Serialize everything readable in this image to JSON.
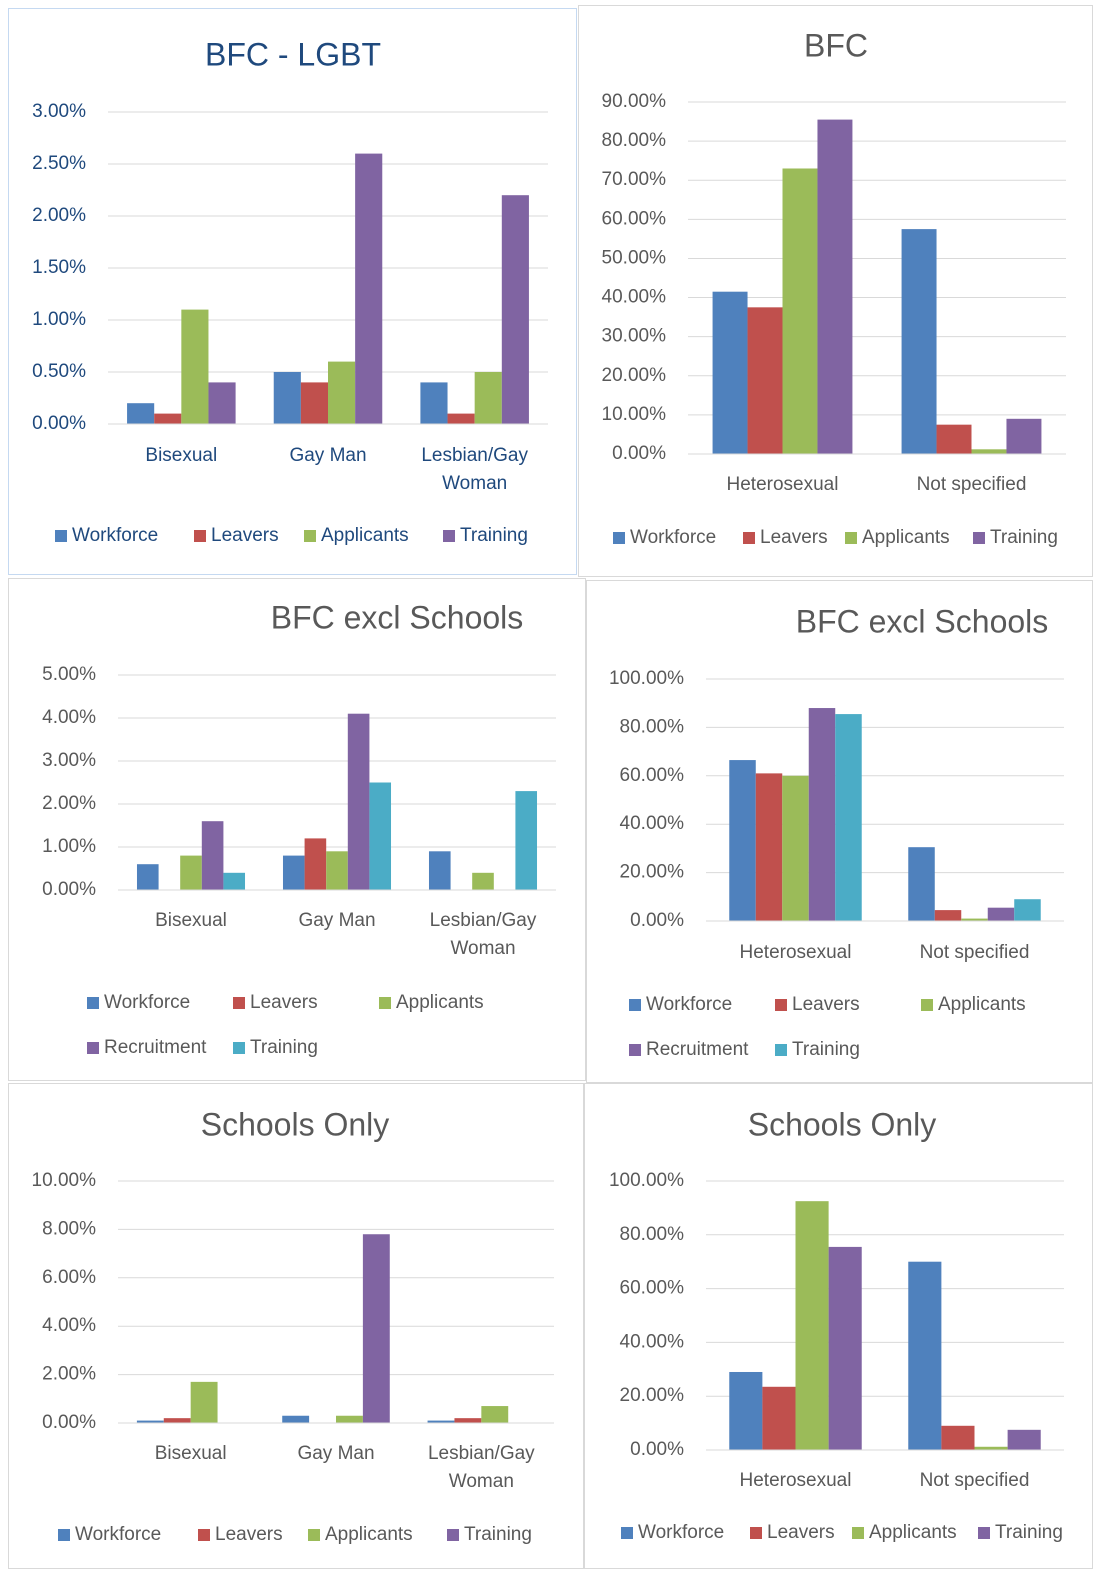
{
  "chart_data": [
    {
      "type": "bar",
      "title": "BFC - LGBT",
      "text_color": "#1f497d",
      "categories": [
        "Bisexual",
        "Gay Man",
        "Lesbian/Gay Woman"
      ],
      "series": [
        {
          "name": "Workforce",
          "color": "#4f81bd",
          "values": [
            0.2,
            0.5,
            0.4
          ]
        },
        {
          "name": "Leavers",
          "color": "#c0504d",
          "values": [
            0.1,
            0.4,
            0.1
          ]
        },
        {
          "name": "Applicants",
          "color": "#9bbb59",
          "values": [
            1.1,
            0.6,
            0.5
          ]
        },
        {
          "name": "Training",
          "color": "#8064a2",
          "values": [
            0.4,
            2.6,
            2.2
          ]
        }
      ],
      "ylim": [
        0,
        3
      ],
      "yticks": [
        {
          "value": 0,
          "label": "0.00%"
        },
        {
          "value": 0.5,
          "label": "0.50%"
        },
        {
          "value": 1,
          "label": "1.00%"
        },
        {
          "value": 1.5,
          "label": "1.50%"
        },
        {
          "value": 2,
          "label": "2.00%"
        },
        {
          "value": 2.5,
          "label": "2.50%"
        },
        {
          "value": 3,
          "label": "3.00%"
        }
      ],
      "grid": true
    },
    {
      "type": "bar",
      "title": "BFC",
      "text_color": "#595959",
      "categories": [
        "Heterosexual",
        "Not specified"
      ],
      "series": [
        {
          "name": "Workforce",
          "color": "#4f81bd",
          "values": [
            41.5,
            57.5
          ]
        },
        {
          "name": "Leavers",
          "color": "#c0504d",
          "values": [
            37.5,
            7.5
          ]
        },
        {
          "name": "Applicants",
          "color": "#9bbb59",
          "values": [
            73,
            1.2
          ]
        },
        {
          "name": "Training",
          "color": "#8064a2",
          "values": [
            85.5,
            9
          ]
        }
      ],
      "ylim": [
        0,
        90
      ],
      "yticks": [
        {
          "value": 0,
          "label": "0.00%"
        },
        {
          "value": 10,
          "label": "10.00%"
        },
        {
          "value": 20,
          "label": "20.00%"
        },
        {
          "value": 30,
          "label": "30.00%"
        },
        {
          "value": 40,
          "label": "40.00%"
        },
        {
          "value": 50,
          "label": "50.00%"
        },
        {
          "value": 60,
          "label": "60.00%"
        },
        {
          "value": 70,
          "label": "70.00%"
        },
        {
          "value": 80,
          "label": "80.00%"
        },
        {
          "value": 90,
          "label": "90.00%"
        }
      ],
      "grid": true
    },
    {
      "type": "bar",
      "title": "BFC excl Schools",
      "text_color": "#595959",
      "categories": [
        "Bisexual",
        "Gay Man",
        "Lesbian/Gay Woman"
      ],
      "series": [
        {
          "name": "Workforce",
          "color": "#4f81bd",
          "values": [
            0.6,
            0.8,
            0.9
          ]
        },
        {
          "name": "Leavers",
          "color": "#c0504d",
          "values": [
            0,
            1.2,
            0
          ]
        },
        {
          "name": "Applicants",
          "color": "#9bbb59",
          "values": [
            0.8,
            0.9,
            0.4
          ]
        },
        {
          "name": "Recruitment",
          "color": "#8064a2",
          "values": [
            1.6,
            4.1,
            0
          ]
        },
        {
          "name": "Training",
          "color": "#4bacc6",
          "values": [
            0.4,
            2.5,
            2.3
          ]
        }
      ],
      "ylim": [
        0,
        5
      ],
      "yticks": [
        {
          "value": 0,
          "label": "0.00%"
        },
        {
          "value": 1,
          "label": "1.00%"
        },
        {
          "value": 2,
          "label": "2.00%"
        },
        {
          "value": 3,
          "label": "3.00%"
        },
        {
          "value": 4,
          "label": "4.00%"
        },
        {
          "value": 5,
          "label": "5.00%"
        }
      ],
      "grid": true
    },
    {
      "type": "bar",
      "title": "BFC excl Schools",
      "text_color": "#595959",
      "categories": [
        "Heterosexual",
        "Not specified"
      ],
      "series": [
        {
          "name": "Workforce",
          "color": "#4f81bd",
          "values": [
            66.5,
            30.5
          ]
        },
        {
          "name": "Leavers",
          "color": "#c0504d",
          "values": [
            61,
            4.5
          ]
        },
        {
          "name": "Applicants",
          "color": "#9bbb59",
          "values": [
            60,
            1
          ]
        },
        {
          "name": "Recruitment",
          "color": "#8064a2",
          "values": [
            88,
            5.5
          ]
        },
        {
          "name": "Training",
          "color": "#4bacc6",
          "values": [
            85.5,
            9
          ]
        }
      ],
      "ylim": [
        0,
        100
      ],
      "yticks": [
        {
          "value": 0,
          "label": "0.00%"
        },
        {
          "value": 20,
          "label": "20.00%"
        },
        {
          "value": 40,
          "label": "40.00%"
        },
        {
          "value": 60,
          "label": "60.00%"
        },
        {
          "value": 80,
          "label": "80.00%"
        },
        {
          "value": 100,
          "label": "100.00%"
        }
      ],
      "grid": true
    },
    {
      "type": "bar",
      "title": "Schools Only",
      "text_color": "#595959",
      "categories": [
        "Bisexual",
        "Gay Man",
        "Lesbian/Gay Woman"
      ],
      "series": [
        {
          "name": "Workforce",
          "color": "#4f81bd",
          "values": [
            0.1,
            0.3,
            0.1
          ]
        },
        {
          "name": "Leavers",
          "color": "#c0504d",
          "values": [
            0.2,
            0,
            0.2
          ]
        },
        {
          "name": "Applicants",
          "color": "#9bbb59",
          "values": [
            1.7,
            0.3,
            0.7
          ]
        },
        {
          "name": "Training",
          "color": "#8064a2",
          "values": [
            0,
            7.8,
            0
          ]
        }
      ],
      "ylim": [
        0,
        10
      ],
      "yticks": [
        {
          "value": 0,
          "label": "0.00%"
        },
        {
          "value": 2,
          "label": "2.00%"
        },
        {
          "value": 4,
          "label": "4.00%"
        },
        {
          "value": 6,
          "label": "6.00%"
        },
        {
          "value": 8,
          "label": "8.00%"
        },
        {
          "value": 10,
          "label": "10.00%"
        }
      ],
      "grid": true
    },
    {
      "type": "bar",
      "title": "Schools Only",
      "text_color": "#595959",
      "categories": [
        "Heterosexual",
        "Not specified"
      ],
      "series": [
        {
          "name": "Workforce",
          "color": "#4f81bd",
          "values": [
            29,
            70
          ]
        },
        {
          "name": "Leavers",
          "color": "#c0504d",
          "values": [
            23.5,
            9
          ]
        },
        {
          "name": "Applicants",
          "color": "#9bbb59",
          "values": [
            92.5,
            1.2
          ]
        },
        {
          "name": "Training",
          "color": "#8064a2",
          "values": [
            75.5,
            7.5
          ]
        }
      ],
      "ylim": [
        0,
        100
      ],
      "yticks": [
        {
          "value": 0,
          "label": "0.00%"
        },
        {
          "value": 20,
          "label": "20.00%"
        },
        {
          "value": 40,
          "label": "40.00%"
        },
        {
          "value": 60,
          "label": "60.00%"
        },
        {
          "value": 80,
          "label": "80.00%"
        },
        {
          "value": 100,
          "label": "100.00%"
        }
      ],
      "grid": true
    }
  ]
}
